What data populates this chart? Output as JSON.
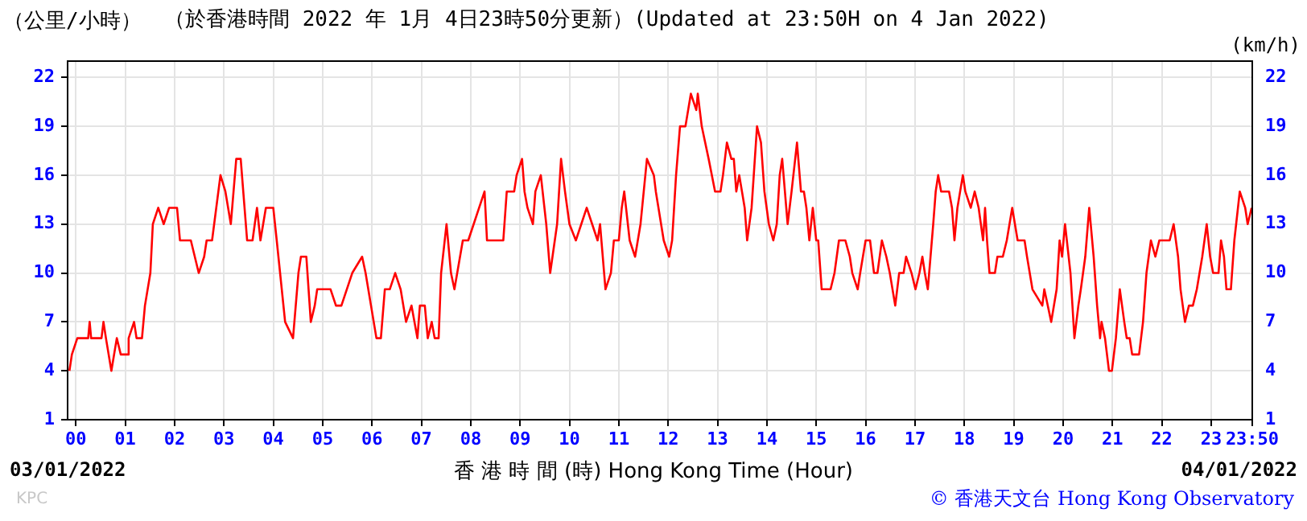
{
  "chart_data": {
    "type": "line",
    "title": "（於香港時間 2022 年 1月 4日23時50分更新）(Updated at 23:50H on 4 Jan 2022)",
    "ylabel": "（公里/小時）",
    "y2label": "(km/h)",
    "xlabel": "香 港 時 間 (時) Hong Kong Time (Hour)",
    "annotations": [
      "03/01/2022",
      "04/01/2022",
      "KPC",
      "© 香港天文台 Hong Kong Observatory"
    ],
    "grid": true,
    "xlim": [
      -0.1667,
      23.8333
    ],
    "xticks": [
      {
        "value": 0,
        "label": "00"
      },
      {
        "value": 1,
        "label": "01"
      },
      {
        "value": 2,
        "label": "02"
      },
      {
        "value": 3,
        "label": "03"
      },
      {
        "value": 4,
        "label": "04"
      },
      {
        "value": 5,
        "label": "05"
      },
      {
        "value": 6,
        "label": "06"
      },
      {
        "value": 7,
        "label": "07"
      },
      {
        "value": 8,
        "label": "08"
      },
      {
        "value": 9,
        "label": "09"
      },
      {
        "value": 10,
        "label": "10"
      },
      {
        "value": 11,
        "label": "11"
      },
      {
        "value": 12,
        "label": "12"
      },
      {
        "value": 13,
        "label": "13"
      },
      {
        "value": 14,
        "label": "14"
      },
      {
        "value": 15,
        "label": "15"
      },
      {
        "value": 16,
        "label": "16"
      },
      {
        "value": 17,
        "label": "17"
      },
      {
        "value": 18,
        "label": "18"
      },
      {
        "value": 19,
        "label": "19"
      },
      {
        "value": 20,
        "label": "20"
      },
      {
        "value": 21,
        "label": "21"
      },
      {
        "value": 22,
        "label": "22"
      },
      {
        "value": 23,
        "label": "23"
      },
      {
        "value": 23.8333,
        "label": "23:50"
      }
    ],
    "ylim": [
      1,
      23
    ],
    "yticks": [
      1,
      4,
      7,
      10,
      13,
      16,
      19,
      22
    ],
    "y2lim": [
      1,
      23
    ],
    "y2ticks": [
      1,
      4,
      7,
      10,
      13,
      16,
      19,
      22
    ],
    "x": [
      -0.13,
      -0.08,
      0.03,
      0.25,
      0.28,
      0.31,
      0.52,
      0.56,
      0.61,
      0.72,
      0.83,
      0.91,
      1.05,
      1.07,
      1.18,
      1.23,
      1.34,
      1.4,
      1.51,
      1.56,
      1.67,
      1.78,
      1.89,
      2.05,
      2.11,
      2.33,
      2.49,
      2.6,
      2.65,
      2.76,
      2.93,
      3.03,
      3.14,
      3.25,
      3.34,
      3.47,
      3.58,
      3.67,
      3.74,
      3.85,
      4.0,
      4.07,
      4.24,
      4.4,
      4.51,
      4.56,
      4.67,
      4.76,
      4.84,
      4.89,
      5.16,
      5.27,
      5.38,
      5.49,
      5.6,
      5.8,
      5.87,
      5.98,
      6.09,
      6.18,
      6.26,
      6.36,
      6.47,
      6.58,
      6.69,
      6.8,
      6.92,
      6.97,
      7.07,
      7.13,
      7.21,
      7.27,
      7.35,
      7.4,
      7.51,
      7.6,
      7.67,
      7.84,
      7.95,
      8.06,
      8.17,
      8.28,
      8.33,
      8.66,
      8.73,
      8.88,
      8.93,
      9.04,
      9.09,
      9.15,
      9.26,
      9.31,
      9.42,
      9.53,
      9.61,
      9.75,
      9.83,
      9.91,
      10.0,
      10.13,
      10.24,
      10.35,
      10.46,
      10.57,
      10.62,
      10.73,
      10.84,
      10.9,
      11.0,
      11.06,
      11.11,
      11.22,
      11.33,
      11.44,
      11.57,
      11.71,
      11.75,
      11.91,
      12.02,
      12.08,
      12.16,
      12.24,
      12.35,
      12.46,
      12.57,
      12.6,
      12.68,
      12.82,
      12.95,
      13.06,
      13.11,
      13.19,
      13.28,
      13.33,
      13.38,
      13.44,
      13.55,
      13.6,
      13.69,
      13.8,
      13.88,
      13.95,
      14.04,
      14.13,
      14.2,
      14.26,
      14.31,
      14.42,
      14.5,
      14.61,
      14.69,
      14.75,
      14.8,
      14.86,
      14.93,
      15.0,
      15.04,
      15.11,
      15.29,
      15.37,
      15.46,
      15.59,
      15.68,
      15.73,
      15.84,
      15.89,
      16.0,
      16.09,
      16.17,
      16.24,
      16.33,
      16.42,
      16.49,
      16.6,
      16.68,
      16.77,
      16.82,
      16.93,
      17.01,
      17.09,
      17.15,
      17.2,
      17.26,
      17.37,
      17.42,
      17.47,
      17.53,
      17.69,
      17.75,
      17.8,
      17.86,
      17.97,
      18.02,
      18.13,
      18.21,
      18.29,
      18.38,
      18.42,
      18.46,
      18.51,
      18.62,
      18.67,
      18.78,
      18.86,
      18.97,
      19.08,
      19.22,
      19.27,
      19.38,
      19.58,
      19.62,
      19.69,
      19.76,
      19.87,
      19.93,
      19.98,
      20.04,
      20.15,
      20.23,
      20.31,
      20.36,
      20.45,
      20.53,
      20.62,
      20.69,
      20.75,
      20.78,
      20.85,
      20.93,
      20.99,
      21.07,
      21.15,
      21.24,
      21.29,
      21.35,
      21.4,
      21.54,
      21.62,
      21.69,
      21.78,
      21.87,
      21.95,
      22.16,
      22.24,
      22.33,
      22.38,
      22.47,
      22.55,
      22.63,
      22.71,
      22.82,
      22.91,
      22.98,
      23.04,
      23.15,
      23.2,
      23.26,
      23.31,
      23.4,
      23.47,
      23.58,
      23.69,
      23.74,
      23.82
    ],
    "series": [
      {
        "color": "#ff0000",
        "values": [
          4,
          5,
          6,
          6,
          7,
          6,
          6,
          7,
          6,
          4,
          6,
          5,
          5,
          6,
          7,
          6,
          6,
          8,
          10,
          13,
          14,
          13,
          14,
          14,
          12,
          12,
          10,
          11,
          12,
          12,
          16,
          15,
          13,
          17,
          17,
          12,
          12,
          14,
          12,
          14,
          14,
          12,
          7,
          6,
          10,
          11,
          11,
          7,
          8,
          9,
          9,
          8,
          8,
          9,
          10,
          11,
          10,
          8,
          6,
          6,
          9,
          9,
          10,
          9,
          7,
          8,
          6,
          8,
          8,
          6,
          7,
          6,
          6,
          10,
          13,
          10,
          9,
          12,
          12,
          13,
          14,
          15,
          12,
          12,
          15,
          15,
          16,
          17,
          15,
          14,
          13,
          15,
          16,
          13,
          10,
          13,
          17,
          15,
          13,
          12,
          13,
          14,
          13,
          12,
          13,
          9,
          10,
          12,
          12,
          14,
          15,
          12,
          11,
          13,
          17,
          16,
          15,
          12,
          11,
          12,
          16,
          19,
          19,
          21,
          20,
          21,
          19,
          17,
          15,
          15,
          16,
          18,
          17,
          17,
          15,
          16,
          14,
          12,
          14,
          19,
          18,
          15,
          13,
          12,
          13,
          16,
          17,
          13,
          15,
          18,
          15,
          15,
          14,
          12,
          14,
          12,
          12,
          9,
          9,
          10,
          12,
          12,
          11,
          10,
          9,
          10,
          12,
          12,
          10,
          10,
          12,
          11,
          10,
          8,
          10,
          10,
          11,
          10,
          9,
          10,
          11,
          10,
          9,
          13,
          15,
          16,
          15,
          15,
          14,
          12,
          14,
          16,
          15,
          14,
          15,
          14,
          12,
          14,
          12,
          10,
          10,
          11,
          11,
          12,
          14,
          12,
          12,
          11,
          9,
          8,
          9,
          8,
          7,
          9,
          12,
          11,
          13,
          10,
          6,
          8,
          9,
          11,
          14,
          11,
          8,
          6,
          7,
          6,
          4,
          4,
          6,
          9,
          7,
          6,
          6,
          5,
          5,
          7,
          10,
          12,
          11,
          12,
          12,
          13,
          11,
          9,
          7,
          8,
          8,
          9,
          11,
          13,
          11,
          10,
          10,
          12,
          11,
          9,
          9,
          12,
          15,
          14,
          13,
          14
        ]
      }
    ]
  }
}
